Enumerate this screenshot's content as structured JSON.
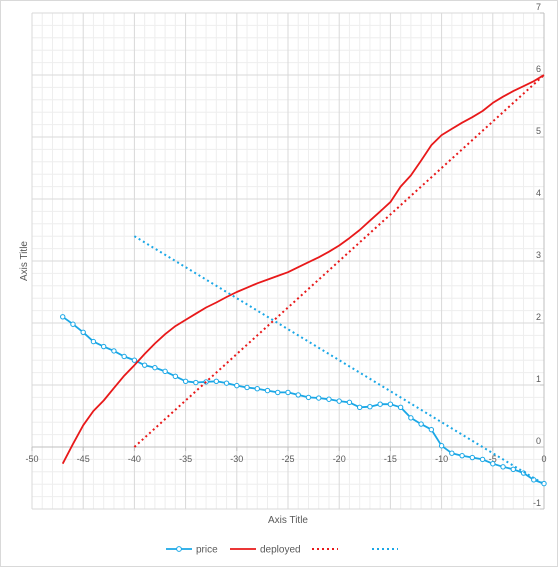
{
  "chart_data": {
    "type": "line",
    "title": "",
    "xlabel": "Axis Title",
    "ylabel": "Axis Title",
    "xlim": [
      -50,
      0
    ],
    "ylim": [
      -1,
      7
    ],
    "x_ticks": [
      -50,
      -45,
      -40,
      -35,
      -30,
      -25,
      -20,
      -15,
      -10,
      -5,
      0
    ],
    "y_ticks": [
      -1,
      0,
      1,
      2,
      3,
      4,
      5,
      6,
      7
    ],
    "grid": true,
    "legend_position": "bottom",
    "series": [
      {
        "name": "price",
        "color": "#1aa7e6",
        "style": "solid-markers",
        "points": [
          [
            -47,
            2.1
          ],
          [
            -46,
            1.98
          ],
          [
            -45,
            1.85
          ],
          [
            -44,
            1.7
          ],
          [
            -43,
            1.62
          ],
          [
            -42,
            1.55
          ],
          [
            -41,
            1.46
          ],
          [
            -40,
            1.4
          ],
          [
            -39,
            1.32
          ],
          [
            -38,
            1.28
          ],
          [
            -37,
            1.22
          ],
          [
            -36,
            1.14
          ],
          [
            -35,
            1.06
          ],
          [
            -34,
            1.04
          ],
          [
            -33,
            1.05
          ],
          [
            -32,
            1.06
          ],
          [
            -31,
            1.03
          ],
          [
            -30,
            0.99
          ],
          [
            -29,
            0.96
          ],
          [
            -28,
            0.94
          ],
          [
            -27,
            0.91
          ],
          [
            -26,
            0.88
          ],
          [
            -25,
            0.88
          ],
          [
            -24,
            0.84
          ],
          [
            -23,
            0.8
          ],
          [
            -22,
            0.79
          ],
          [
            -21,
            0.77
          ],
          [
            -20,
            0.74
          ],
          [
            -19,
            0.72
          ],
          [
            -18,
            0.64
          ],
          [
            -17,
            0.65
          ],
          [
            -16,
            0.69
          ],
          [
            -15,
            0.69
          ],
          [
            -14,
            0.64
          ],
          [
            -13,
            0.47
          ],
          [
            -12,
            0.37
          ],
          [
            -11,
            0.28
          ],
          [
            -10,
            0.02
          ],
          [
            -9,
            -0.1
          ],
          [
            -8,
            -0.14
          ],
          [
            -7,
            -0.17
          ],
          [
            -6,
            -0.2
          ],
          [
            -5,
            -0.27
          ],
          [
            -4,
            -0.32
          ],
          [
            -3,
            -0.36
          ],
          [
            -2,
            -0.42
          ],
          [
            -1,
            -0.53
          ],
          [
            0,
            -0.59
          ]
        ]
      },
      {
        "name": "deployed",
        "color": "#e8191a",
        "style": "solid",
        "points": [
          [
            -47,
            -0.27
          ],
          [
            -46,
            0.05
          ],
          [
            -45,
            0.35
          ],
          [
            -44,
            0.58
          ],
          [
            -43,
            0.75
          ],
          [
            -42,
            0.95
          ],
          [
            -41,
            1.15
          ],
          [
            -40,
            1.32
          ],
          [
            -39,
            1.5
          ],
          [
            -38,
            1.67
          ],
          [
            -37,
            1.82
          ],
          [
            -36,
            1.95
          ],
          [
            -35,
            2.05
          ],
          [
            -34,
            2.15
          ],
          [
            -33,
            2.25
          ],
          [
            -32,
            2.33
          ],
          [
            -31,
            2.42
          ],
          [
            -30,
            2.5
          ],
          [
            -29,
            2.57
          ],
          [
            -28,
            2.64
          ],
          [
            -27,
            2.7
          ],
          [
            -26,
            2.76
          ],
          [
            -25,
            2.82
          ],
          [
            -24,
            2.9
          ],
          [
            -23,
            2.98
          ],
          [
            -22,
            3.06
          ],
          [
            -21,
            3.15
          ],
          [
            -20,
            3.25
          ],
          [
            -19,
            3.37
          ],
          [
            -18,
            3.5
          ],
          [
            -17,
            3.65
          ],
          [
            -16,
            3.8
          ],
          [
            -15,
            3.95
          ],
          [
            -14,
            4.2
          ],
          [
            -13,
            4.38
          ],
          [
            -12,
            4.62
          ],
          [
            -11,
            4.87
          ],
          [
            -10,
            5.03
          ],
          [
            -9,
            5.13
          ],
          [
            -8,
            5.23
          ],
          [
            -7,
            5.32
          ],
          [
            -6,
            5.42
          ],
          [
            -5,
            5.55
          ],
          [
            -4,
            5.65
          ],
          [
            -3,
            5.74
          ],
          [
            -2,
            5.82
          ],
          [
            -1,
            5.9
          ],
          [
            0,
            6.0
          ]
        ]
      },
      {
        "name": "",
        "color": "#e8191a",
        "style": "dotted",
        "points": [
          [
            -40,
            0
          ],
          [
            0,
            6.0
          ]
        ]
      },
      {
        "name": "",
        "color": "#1aa7e6",
        "style": "dotted",
        "points": [
          [
            -40,
            3.4
          ],
          [
            0,
            -0.6
          ]
        ]
      }
    ]
  }
}
